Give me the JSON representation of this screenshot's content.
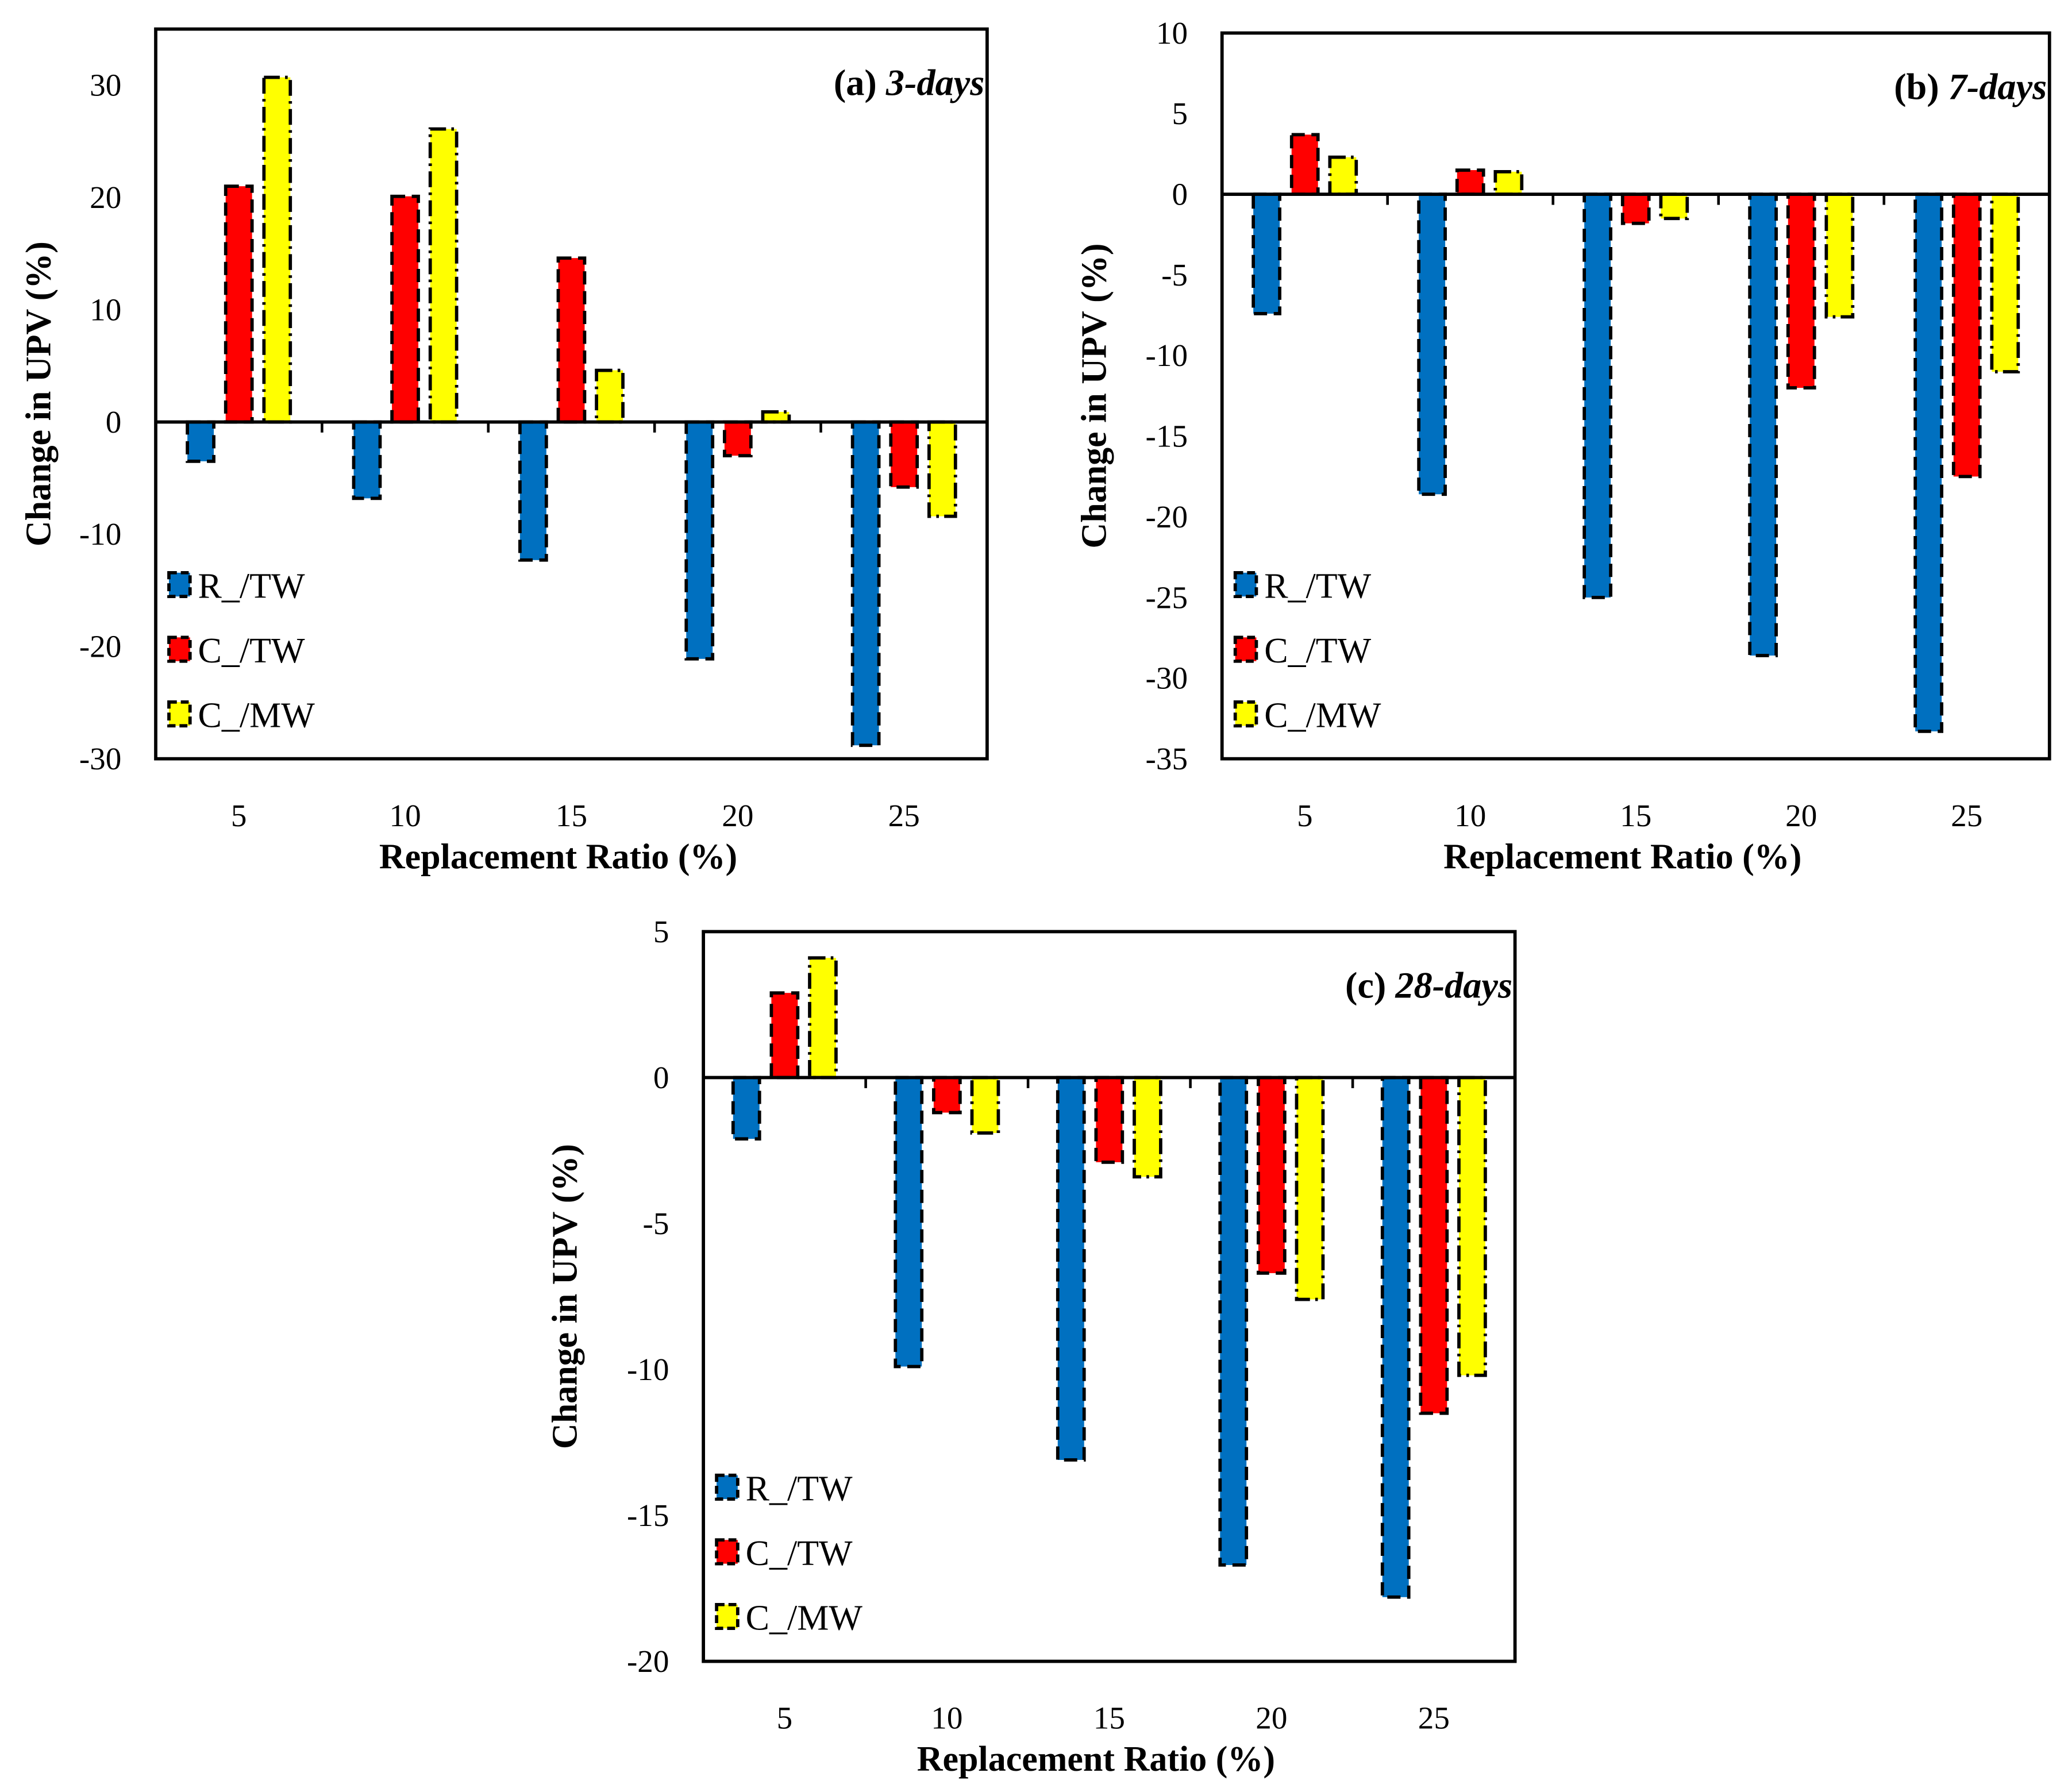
{
  "chart_data": [
    {
      "type": "bar",
      "title_prefix": "(a)",
      "title_italic": "3-days",
      "xlabel": "Replacement Ratio (%)",
      "ylabel": "Change in UPV (%)",
      "categories": [
        "5",
        "10",
        "15",
        "20",
        "25"
      ],
      "ylim": [
        -30,
        35
      ],
      "yticks": [
        -30,
        -20,
        -10,
        0,
        10,
        20,
        30
      ],
      "legend_position": "bottom-left",
      "series": [
        {
          "name": "R_/TW",
          "color": "#0070C0",
          "values": [
            -3.5,
            -6.8,
            -12.3,
            -21.1,
            -28.8
          ]
        },
        {
          "name": "C_/TW",
          "color": "#FF0000",
          "values": [
            21.0,
            20.1,
            14.6,
            -3.0,
            -5.8
          ]
        },
        {
          "name": "C_/MW",
          "color": "#FFFF00",
          "values": [
            30.7,
            26.1,
            4.6,
            0.9,
            -8.4
          ]
        }
      ]
    },
    {
      "type": "bar",
      "title_prefix": "(b)",
      "title_italic": "7-days",
      "xlabel": "Replacement Ratio (%)",
      "ylabel": "Change in UPV (%)",
      "categories": [
        "5",
        "10",
        "15",
        "20",
        "25"
      ],
      "ylim": [
        -35,
        10
      ],
      "yticks": [
        -35,
        -30,
        -25,
        -20,
        -15,
        -10,
        -5,
        0,
        5,
        10
      ],
      "legend_position": "bottom-left",
      "series": [
        {
          "name": "R_/TW",
          "color": "#0070C0",
          "values": [
            -7.4,
            -18.6,
            -25.0,
            -28.6,
            -33.3
          ]
        },
        {
          "name": "C_/TW",
          "color": "#FF0000",
          "values": [
            3.7,
            1.5,
            -1.8,
            -12.0,
            -17.5
          ]
        },
        {
          "name": "C_/MW",
          "color": "#FFFF00",
          "values": [
            2.3,
            1.4,
            -1.5,
            -7.6,
            -11.0
          ]
        }
      ]
    },
    {
      "type": "bar",
      "title_prefix": "(c)",
      "title_italic": "28-days",
      "xlabel": "Replacement Ratio (%)",
      "ylabel": "Change in UPV (%)",
      "categories": [
        "5",
        "10",
        "15",
        "20",
        "25"
      ],
      "ylim": [
        -20,
        5
      ],
      "yticks": [
        -20,
        -15,
        -10,
        -5,
        0,
        5
      ],
      "legend_position": "bottom-left",
      "series": [
        {
          "name": "R_/TW",
          "color": "#0070C0",
          "values": [
            -2.1,
            -9.9,
            -13.1,
            -16.7,
            -17.8
          ]
        },
        {
          "name": "C_/TW",
          "color": "#FF0000",
          "values": [
            2.9,
            -1.2,
            -2.9,
            -6.7,
            -11.5
          ]
        },
        {
          "name": "C_/MW",
          "color": "#FFFF00",
          "values": [
            4.1,
            -1.9,
            -3.4,
            -7.6,
            -10.2
          ]
        }
      ]
    }
  ]
}
